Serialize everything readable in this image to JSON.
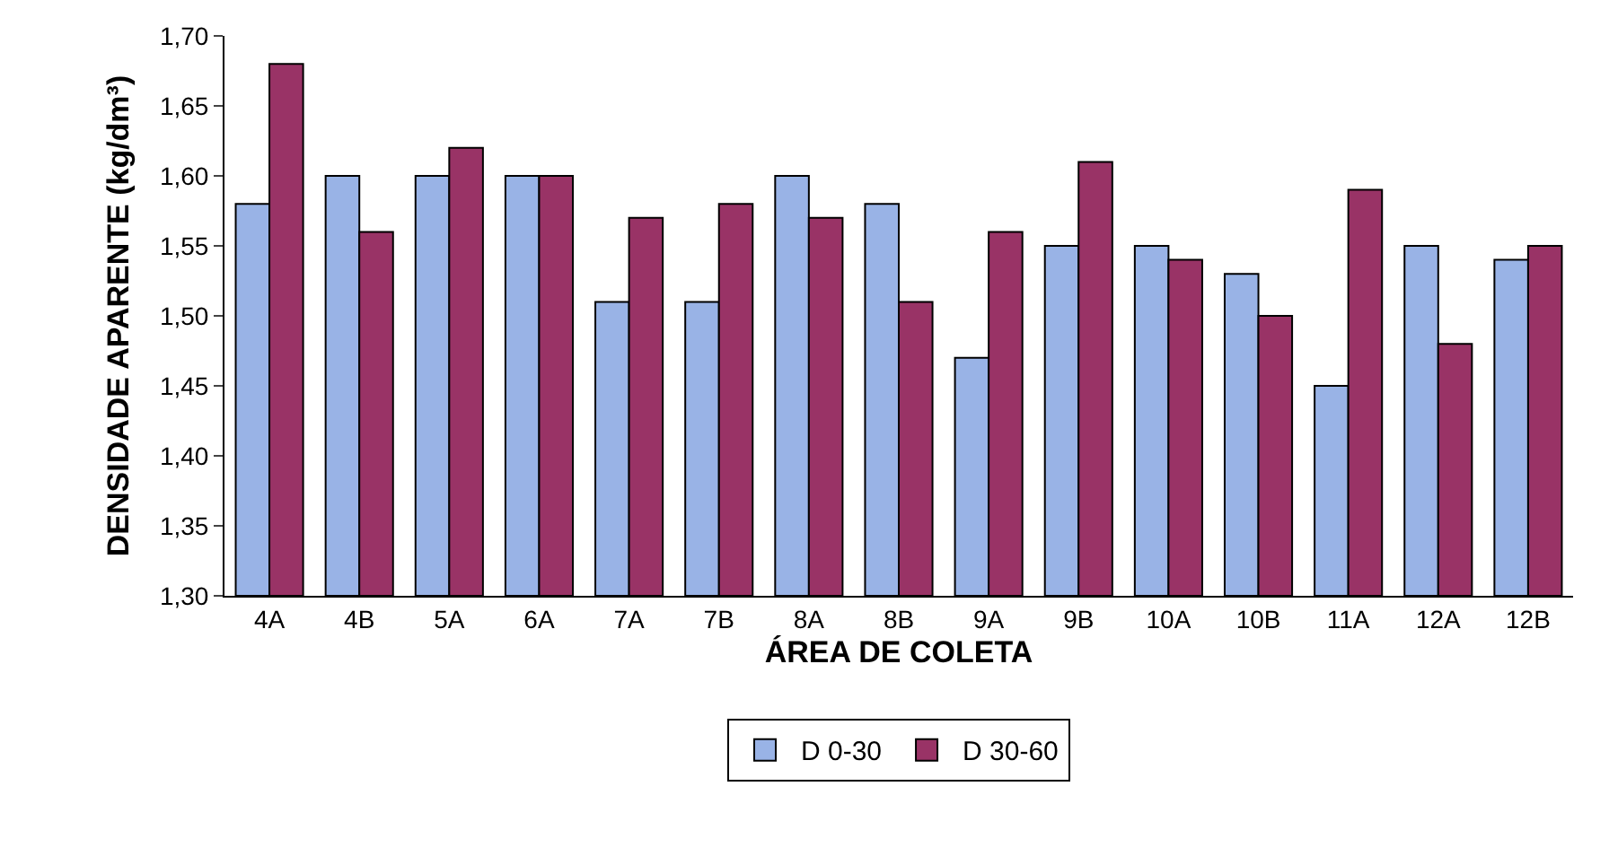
{
  "chart_data": {
    "type": "bar",
    "xlabel": "ÁREA DE COLETA",
    "ylabel": "DENSIDADE APARENTE (kg/dm³)",
    "categories": [
      "4A",
      "4B",
      "5A",
      "6A",
      "7A",
      "7B",
      "8A",
      "8B",
      "9A",
      "9B",
      "10A",
      "10B",
      "11A",
      "12A",
      "12B"
    ],
    "series": [
      {
        "name": "D 0-30",
        "color": "#99b3e6",
        "values": [
          1.58,
          1.6,
          1.6,
          1.6,
          1.51,
          1.51,
          1.6,
          1.58,
          1.47,
          1.55,
          1.55,
          1.53,
          1.45,
          1.55,
          1.54
        ]
      },
      {
        "name": "D 30-60",
        "color": "#993366",
        "values": [
          1.68,
          1.56,
          1.62,
          1.6,
          1.57,
          1.58,
          1.57,
          1.51,
          1.56,
          1.61,
          1.54,
          1.5,
          1.59,
          1.48,
          1.55
        ]
      }
    ],
    "ylim": [
      1.3,
      1.7
    ],
    "yticks": [
      {
        "value": 1.3,
        "label": "1,30"
      },
      {
        "value": 1.35,
        "label": "1,35"
      },
      {
        "value": 1.4,
        "label": "1,40"
      },
      {
        "value": 1.45,
        "label": "1,45"
      },
      {
        "value": 1.5,
        "label": "1,50"
      },
      {
        "value": 1.55,
        "label": "1,55"
      },
      {
        "value": 1.6,
        "label": "1,60"
      },
      {
        "value": 1.65,
        "label": "1,65"
      },
      {
        "value": 1.7,
        "label": "1,70"
      }
    ],
    "grid": false,
    "legend": "bottom"
  }
}
